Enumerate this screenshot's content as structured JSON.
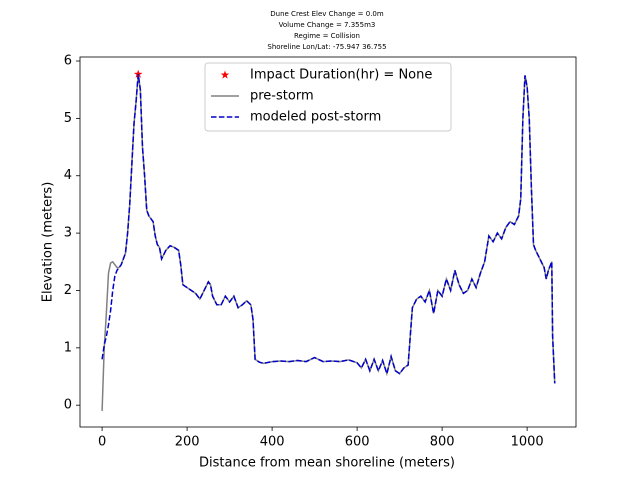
{
  "chart_data": {
    "type": "line",
    "title": [
      "Dune Crest Elev Change = 0.0m",
      "Volume Change = 7.355m3",
      "Regime = Collision",
      "Shoreline Lon/Lat: -75.947 36.755"
    ],
    "xlabel": "Distance from mean shoreline (meters)",
    "ylabel": "Elevation (meters)",
    "xlim": [
      -52,
      1115
    ],
    "ylim": [
      -0.38,
      6.07
    ],
    "xticks": [
      0,
      200,
      400,
      600,
      800,
      1000
    ],
    "yticks": [
      0,
      1,
      2,
      3,
      4,
      5,
      6
    ],
    "legend": "upper center",
    "x": [
      0,
      5,
      10,
      15,
      20,
      25,
      30,
      35,
      40,
      45,
      50,
      55,
      60,
      65,
      70,
      75,
      80,
      85,
      90,
      95,
      100,
      105,
      110,
      115,
      120,
      125,
      130,
      135,
      140,
      150,
      160,
      170,
      180,
      185,
      190,
      200,
      210,
      220,
      230,
      240,
      250,
      255,
      260,
      270,
      280,
      290,
      300,
      310,
      320,
      330,
      340,
      350,
      355,
      360,
      370,
      380,
      400,
      420,
      440,
      460,
      480,
      500,
      520,
      540,
      560,
      580,
      600,
      610,
      620,
      630,
      640,
      650,
      660,
      670,
      680,
      690,
      700,
      710,
      720,
      730,
      740,
      750,
      760,
      770,
      780,
      790,
      800,
      810,
      820,
      830,
      840,
      850,
      860,
      870,
      880,
      890,
      900,
      910,
      920,
      930,
      940,
      950,
      960,
      970,
      980,
      985,
      990,
      995,
      1000,
      1005,
      1010,
      1015,
      1020,
      1030,
      1040,
      1045,
      1050,
      1058,
      1060,
      1065
    ],
    "series": [
      {
        "name": "Impact Duration(hr) = None",
        "color": "#ff0000",
        "marker": "star",
        "x": [
          85
        ],
        "values": [
          5.77
        ]
      },
      {
        "name": "pre-storm",
        "color": "#808080",
        "dash": false,
        "values": [
          -0.1,
          1.0,
          1.6,
          2.3,
          2.48,
          2.5,
          2.45,
          2.4,
          2.4,
          2.45,
          2.55,
          2.65,
          3.0,
          3.5,
          4.2,
          4.9,
          5.3,
          5.77,
          5.5,
          4.5,
          4.0,
          3.4,
          3.3,
          3.25,
          3.2,
          2.95,
          2.8,
          2.75,
          2.55,
          2.7,
          2.78,
          2.75,
          2.7,
          2.45,
          2.1,
          2.05,
          2.0,
          1.95,
          1.85,
          2.0,
          2.15,
          2.1,
          1.9,
          1.75,
          1.75,
          1.9,
          1.8,
          1.9,
          1.7,
          1.75,
          1.82,
          1.75,
          1.5,
          0.8,
          0.75,
          0.73,
          0.76,
          0.77,
          0.76,
          0.78,
          0.76,
          0.83,
          0.76,
          0.77,
          0.76,
          0.79,
          0.74,
          0.65,
          0.8,
          0.6,
          0.8,
          0.6,
          0.78,
          0.55,
          0.85,
          0.6,
          0.55,
          0.65,
          0.7,
          1.7,
          1.85,
          1.9,
          1.8,
          2.0,
          1.6,
          2.0,
          1.9,
          2.2,
          2.0,
          2.35,
          2.1,
          1.95,
          2.0,
          2.2,
          2.05,
          2.3,
          2.5,
          2.95,
          2.85,
          3.0,
          2.9,
          3.1,
          3.2,
          3.15,
          3.3,
          3.6,
          5.0,
          5.75,
          5.55,
          5.0,
          3.8,
          2.8,
          2.7,
          2.55,
          2.4,
          2.2,
          2.35,
          2.5,
          1.2,
          0.38
        ]
      },
      {
        "name": "modeled post-storm",
        "color": "#0000cc",
        "dash": true,
        "values": [
          0.8,
          1.05,
          1.2,
          1.4,
          1.65,
          2.0,
          2.25,
          2.35,
          2.4,
          2.45,
          2.55,
          2.65,
          3.0,
          3.5,
          4.2,
          4.9,
          5.3,
          5.77,
          5.5,
          4.5,
          4.0,
          3.4,
          3.3,
          3.25,
          3.2,
          2.95,
          2.8,
          2.75,
          2.55,
          2.7,
          2.78,
          2.75,
          2.7,
          2.45,
          2.1,
          2.05,
          2.0,
          1.95,
          1.85,
          2.0,
          2.15,
          2.1,
          1.9,
          1.75,
          1.75,
          1.9,
          1.8,
          1.9,
          1.7,
          1.75,
          1.82,
          1.75,
          1.5,
          0.8,
          0.75,
          0.73,
          0.76,
          0.77,
          0.76,
          0.78,
          0.76,
          0.83,
          0.76,
          0.77,
          0.76,
          0.79,
          0.74,
          0.65,
          0.8,
          0.6,
          0.8,
          0.6,
          0.78,
          0.55,
          0.85,
          0.6,
          0.55,
          0.65,
          0.7,
          1.7,
          1.85,
          1.9,
          1.8,
          2.0,
          1.6,
          2.0,
          1.9,
          2.2,
          2.0,
          2.35,
          2.1,
          1.95,
          2.0,
          2.2,
          2.05,
          2.3,
          2.5,
          2.95,
          2.85,
          3.0,
          2.9,
          3.1,
          3.2,
          3.15,
          3.3,
          3.6,
          5.0,
          5.75,
          5.55,
          5.0,
          3.8,
          2.8,
          2.7,
          2.55,
          2.4,
          2.2,
          2.35,
          2.5,
          1.2,
          0.38
        ]
      }
    ]
  }
}
